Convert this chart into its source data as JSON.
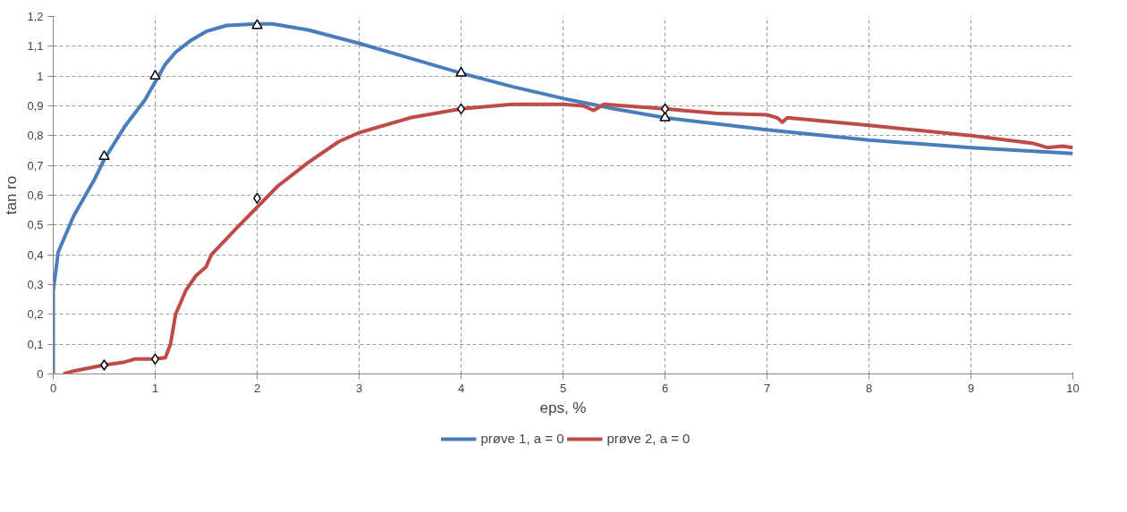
{
  "chart_data": {
    "type": "line",
    "xlabel": "eps, %",
    "ylabel": "tan ro",
    "xlim": [
      0,
      10
    ],
    "xticks": [
      0,
      1,
      2,
      3,
      4,
      5,
      6,
      7,
      8,
      9,
      10
    ],
    "ylim": [
      0,
      1.2
    ],
    "yticks": [
      0,
      {
        "value": 0.1,
        "label": "0,1"
      },
      {
        "value": 0.2,
        "label": "0,2"
      },
      {
        "value": 0.3,
        "label": "0,3"
      },
      {
        "value": 0.4,
        "label": "0,4"
      },
      {
        "value": 0.5,
        "label": "0,5"
      },
      {
        "value": 0.6,
        "label": "0,6"
      },
      {
        "value": 0.7,
        "label": "0,7"
      },
      {
        "value": 0.8,
        "label": "0,8"
      },
      {
        "value": 0.9,
        "label": "0,9"
      },
      1,
      {
        "value": 1.1,
        "label": "1,1"
      },
      {
        "value": 1.2,
        "label": "1,2"
      }
    ],
    "grid": true,
    "legend": "bottom",
    "line_style": "solid",
    "series": [
      {
        "name": "prøve 1, a = 0",
        "color": "#4a7ebb",
        "x": [
          0,
          0,
          0.05,
          0.2,
          0.4,
          0.5,
          0.7,
          0.9,
          1.0,
          1.1,
          1.2,
          1.35,
          1.5,
          1.7,
          2.0,
          2.15,
          2.5,
          3,
          3.5,
          4,
          4.5,
          5,
          5.5,
          6,
          6.5,
          7,
          8,
          9,
          10
        ],
        "values": [
          0,
          0.28,
          0.41,
          0.53,
          0.65,
          0.72,
          0.83,
          0.92,
          0.98,
          1.04,
          1.08,
          1.12,
          1.15,
          1.17,
          1.175,
          1.175,
          1.155,
          1.11,
          1.06,
          1.01,
          0.965,
          0.925,
          0.89,
          0.86,
          0.84,
          0.82,
          0.785,
          0.76,
          0.74
        ]
      },
      {
        "name": "prøve 2, a = 0",
        "color": "#be4b48",
        "x": [
          0.1,
          0.2,
          0.5,
          0.7,
          0.8,
          1,
          1.1,
          1.15,
          1.2,
          1.3,
          1.4,
          1.5,
          1.55,
          1.8,
          2,
          2.2,
          2.5,
          2.8,
          3,
          3.5,
          4,
          4.5,
          5,
          5.2,
          5.3,
          5.4,
          6,
          6.5,
          7,
          7.1,
          7.15,
          7.2,
          8,
          9,
          9.6,
          9.75,
          9.9,
          10
        ],
        "values": [
          0,
          0.01,
          0.03,
          0.04,
          0.05,
          0.05,
          0.055,
          0.1,
          0.2,
          0.28,
          0.33,
          0.36,
          0.4,
          0.49,
          0.56,
          0.63,
          0.71,
          0.78,
          0.81,
          0.86,
          0.89,
          0.905,
          0.905,
          0.9,
          0.885,
          0.905,
          0.89,
          0.875,
          0.87,
          0.86,
          0.845,
          0.86,
          0.835,
          0.8,
          0.775,
          0.76,
          0.765,
          0.76
        ]
      },
      {
        "type": "scatter",
        "marker": "triangle",
        "color": "#000000",
        "x": [
          0.5,
          1,
          2,
          4,
          6
        ],
        "values": [
          0.73,
          1.0,
          1.17,
          1.01,
          0.86
        ]
      },
      {
        "type": "scatter",
        "marker": "diamond",
        "color": "#000000",
        "x": [
          0.5,
          1,
          2,
          4,
          6
        ],
        "values": [
          0.03,
          0.05,
          0.59,
          0.89,
          0.89
        ]
      }
    ]
  }
}
